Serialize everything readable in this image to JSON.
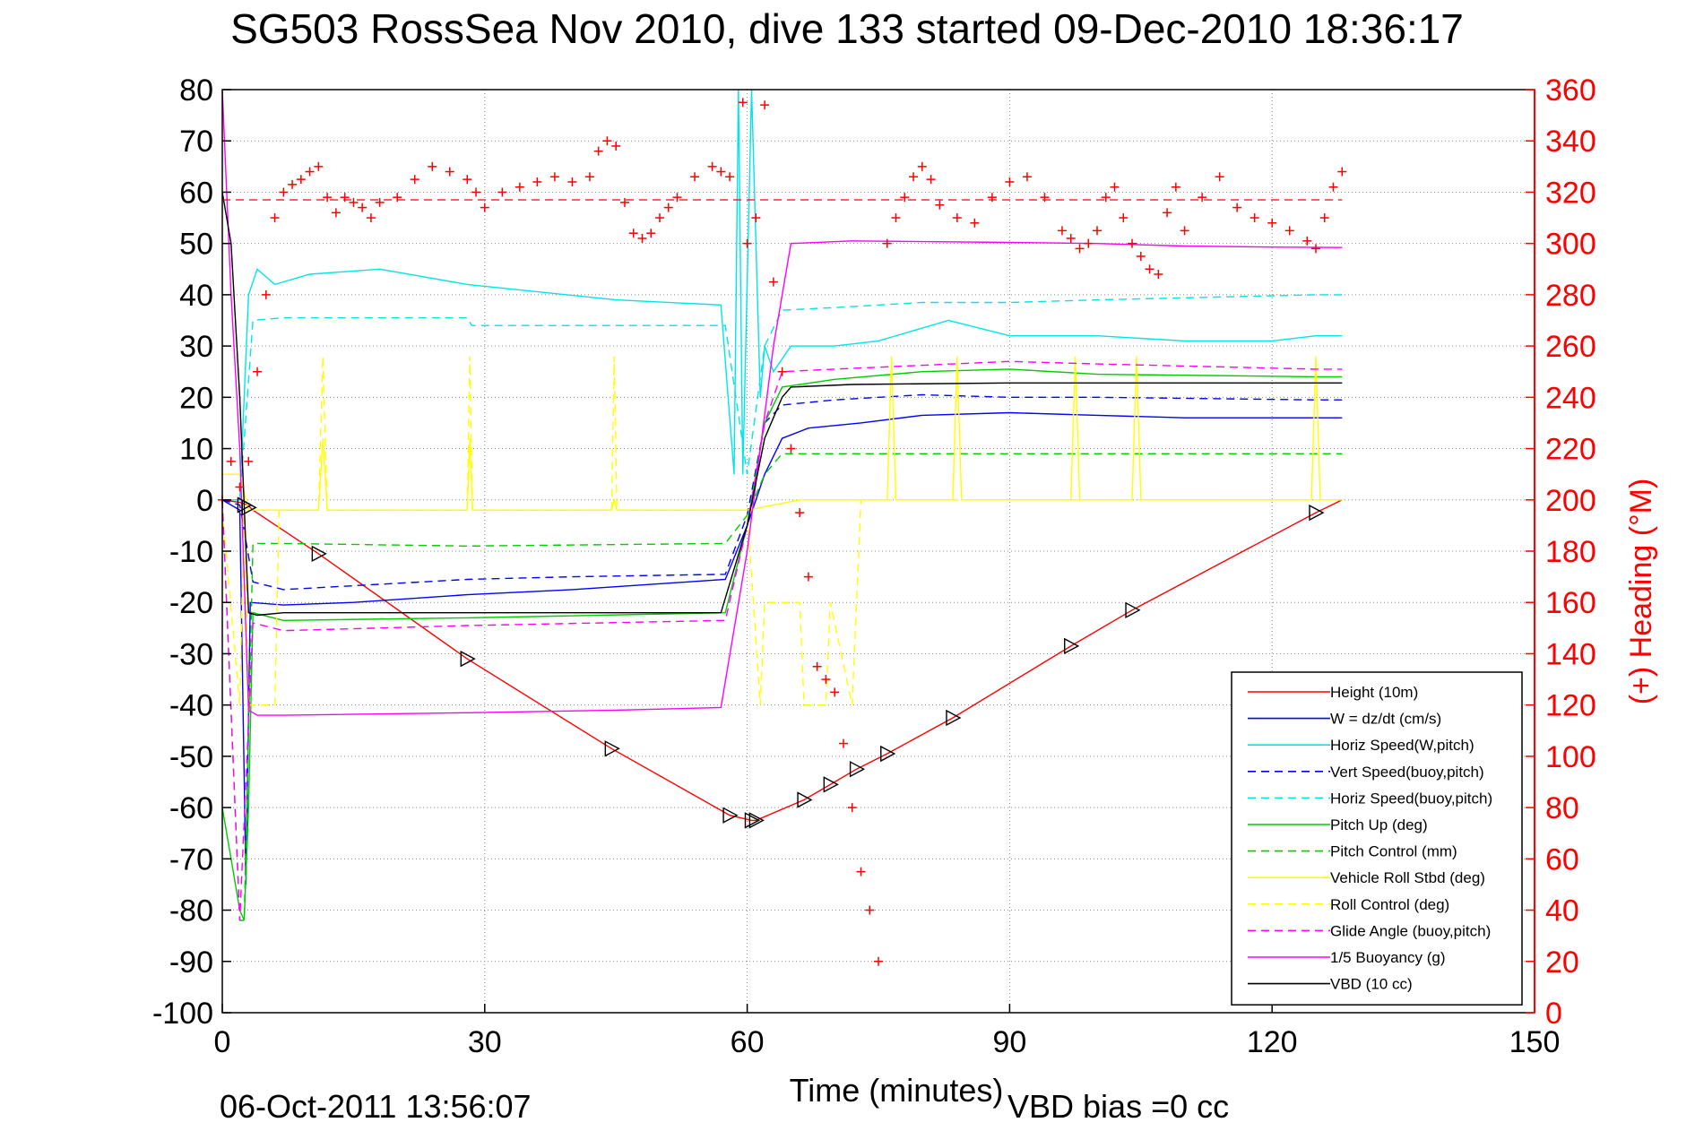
{
  "chart_data": {
    "type": "line",
    "title": "SG503 RossSea Nov 2010, dive 133 started 09-Dec-2010 18:36:17",
    "xlabel": "Time (minutes)",
    "ylabel_right": "(+) Heading (°M)",
    "footer_left": "06-Oct-2011 13:56:07",
    "footer_right": "VBD bias =0 cc",
    "xlim": [
      0,
      150
    ],
    "ylim": [
      -100,
      80
    ],
    "ylim_right": [
      0,
      360
    ],
    "xticks": [
      "0",
      "30",
      "60",
      "90",
      "120",
      "150"
    ],
    "yticks": [
      "80",
      "70",
      "60",
      "50",
      "40",
      "30",
      "20",
      "10",
      "0",
      "-10",
      "-20",
      "-30",
      "-40",
      "-50",
      "-60",
      "-70",
      "-80",
      "-90",
      "-100"
    ],
    "yticks_right": [
      "360",
      "340",
      "320",
      "300",
      "280",
      "260",
      "240",
      "220",
      "200",
      "180",
      "160",
      "140",
      "120",
      "100",
      "80",
      "60",
      "40",
      "20",
      "0"
    ],
    "grid": true,
    "legend_position": "bottom-right",
    "series": [
      {
        "name": "Height (10m)",
        "color": "#ff0000",
        "dash": "solid",
        "x": [
          0,
          2,
          2.9,
          3.5,
          11,
          28,
          44.5,
          58,
          60.5,
          61,
          66.5,
          69.5,
          72.5,
          76,
          83.5,
          97,
          104,
          125,
          128
        ],
        "y": [
          0,
          -0.5,
          -1,
          -2,
          -10.5,
          -31,
          -48.5,
          -61.5,
          -62.5,
          -62.5,
          -58.5,
          -55.5,
          -52.5,
          -49.5,
          -42.5,
          -28.5,
          -21.5,
          -2.5,
          0
        ]
      },
      {
        "name": "W = dz/dt (cm/s)",
        "color": "#0000ff",
        "dash": "solid",
        "x": [
          0,
          2,
          2.7,
          3.2,
          7,
          15,
          28,
          40,
          57.5,
          60,
          62,
          64,
          67,
          73,
          80,
          90,
          100,
          110,
          125,
          128
        ],
        "y": [
          0,
          -2,
          -75,
          -20,
          -20.5,
          -20,
          -18.5,
          -17.5,
          -15.5,
          -5,
          5,
          12,
          14,
          15,
          16.5,
          17,
          16.5,
          16,
          16,
          16
        ]
      },
      {
        "name": "Horiz Speed(W,pitch)",
        "color": "#00e5e5",
        "dash": "solid",
        "x": [
          0,
          2,
          3,
          4,
          6,
          10,
          18,
          28,
          45,
          57,
          58.5,
          59,
          59.5,
          60.5,
          61.5,
          62,
          63,
          65,
          70,
          75,
          83,
          90,
          100,
          110,
          120,
          125,
          128
        ],
        "y": [
          0,
          0,
          40,
          45,
          42,
          44,
          45,
          42,
          39,
          38,
          5,
          80,
          5,
          80,
          20,
          30,
          25,
          30,
          30,
          31,
          35,
          32,
          32,
          31,
          31,
          32,
          32
        ]
      },
      {
        "name": "Vert Speed(buoy,pitch)",
        "color": "#0000ff",
        "dash": "dashed",
        "x": [
          0,
          2,
          3.5,
          7,
          28,
          40,
          57.5,
          60,
          62,
          64,
          70,
          80,
          90,
          100,
          125,
          128
        ],
        "y": [
          0,
          -1,
          -16,
          -17.5,
          -15.5,
          -15,
          -14.5,
          -3,
          15,
          18.5,
          19.5,
          20.5,
          20,
          20,
          19.5,
          19.5
        ]
      },
      {
        "name": "Horiz Speed(buoy,pitch)",
        "color": "#00e5e5",
        "dash": "dashed",
        "x": [
          0,
          2,
          3.5,
          7,
          28,
          28.5,
          57.5,
          60,
          62,
          64,
          70,
          80,
          90,
          100,
          125,
          128
        ],
        "y": [
          0,
          0,
          35,
          35.5,
          35.5,
          34,
          34,
          5,
          30,
          37,
          37.5,
          38.5,
          38.5,
          39,
          40,
          40
        ]
      },
      {
        "name": "Pitch Up (deg)",
        "color": "#00cc00",
        "dash": "solid",
        "x": [
          0,
          1,
          2,
          2.5,
          3,
          3.5,
          7,
          28,
          57.5,
          60,
          62,
          64,
          70,
          80,
          90,
          100,
          125,
          128
        ],
        "y": [
          -60,
          -70,
          -80,
          -82,
          -60,
          -22,
          -23.5,
          -23,
          -22,
          -5,
          15,
          22,
          23.5,
          25,
          25.5,
          24.5,
          24,
          24
        ]
      },
      {
        "name": "Pitch Control (mm)",
        "color": "#00cc00",
        "dash": "dashed",
        "x": [
          0,
          2,
          2.5,
          3.5,
          7,
          28,
          57.5,
          60,
          62,
          64,
          70,
          90,
          125,
          128
        ],
        "y": [
          0,
          -82,
          -82,
          -8.5,
          -8.5,
          -9,
          -8.5,
          -3,
          5,
          9,
          9,
          9,
          9,
          9
        ]
      },
      {
        "name": "Vehicle Roll Stbd (deg)",
        "color": "#ffff00",
        "dash": "solid",
        "x": [
          0,
          2,
          3,
          6,
          11,
          11.5,
          12,
          28,
          28.3,
          28.6,
          44.5,
          44.8,
          45.1,
          58,
          60,
          66,
          66.5,
          69,
          69.5,
          72,
          73,
          76,
          76.5,
          77,
          83.5,
          84,
          84.5,
          97,
          97.5,
          98,
          104,
          104.5,
          105,
          124.5,
          125,
          125.5,
          128
        ],
        "y": [
          5,
          5,
          -2,
          -2,
          -2,
          12,
          -2,
          -2,
          12,
          -2,
          -2,
          0,
          -2,
          -2,
          -2,
          0,
          0,
          0,
          0,
          0,
          0,
          0,
          28,
          0,
          0,
          28,
          0,
          0,
          28,
          0,
          0,
          28,
          0,
          0,
          28,
          0,
          0
        ]
      },
      {
        "name": "Roll Control (deg)",
        "color": "#ffff00",
        "dash": "dashed",
        "x": [
          0,
          2,
          2.5,
          3,
          6,
          6.5,
          11,
          11.5,
          12,
          28,
          28.3,
          28.6,
          44.5,
          44.8,
          45.1,
          58,
          60,
          61.5,
          62,
          66,
          66.5,
          69,
          69.5,
          72,
          72.5,
          73,
          128
        ],
        "y": [
          -2,
          -40,
          0,
          -40,
          -40,
          -2,
          -2,
          28,
          -2,
          -2,
          28,
          -2,
          -2,
          28,
          -2,
          -2,
          -2,
          -40,
          -20,
          -20,
          -40,
          -40,
          -20,
          -40,
          -20,
          0,
          0
        ]
      },
      {
        "name": "Glide Angle (buoy,pitch)",
        "color": "#ff00ff",
        "dash": "dashed",
        "x": [
          0,
          2,
          3.5,
          7,
          28,
          57.5,
          60,
          62,
          64,
          70,
          90,
          100,
          125,
          128
        ],
        "y": [
          0,
          -82,
          -24,
          -25.5,
          -24.5,
          -23.5,
          -5,
          15,
          25,
          25.5,
          27,
          26.5,
          25.5,
          25.5
        ]
      },
      {
        "name": "1/5 Buoyancy (g)",
        "color": "#ff00ff",
        "dash": "solid",
        "x": [
          0,
          1,
          2,
          3,
          4,
          7,
          28,
          45,
          57,
          60,
          63,
          65,
          72,
          90,
          100,
          110,
          120,
          128
        ],
        "y": [
          80,
          40,
          10,
          -41,
          -42,
          -42,
          -41.5,
          -41,
          -40.5,
          -10,
          30,
          50,
          50.5,
          50.2,
          50,
          49.5,
          49.3,
          49.2
        ]
      },
      {
        "name": "VBD (10 cc)",
        "color": "#000000",
        "dash": "solid",
        "x": [
          0,
          1,
          2,
          3,
          4,
          7,
          28,
          45,
          57,
          60,
          62,
          64,
          65,
          72,
          90,
          100,
          110,
          125,
          128
        ],
        "y": [
          60,
          50,
          20,
          -22,
          -22.5,
          -22,
          -22,
          -22,
          -22,
          -5,
          12,
          20,
          22,
          22.5,
          22.8,
          22.8,
          22.8,
          22.8,
          22.8
        ]
      }
    ],
    "heading": {
      "name": "(+) Heading (°M)",
      "color": "#ff0000",
      "mean_line": 317,
      "x": [
        0,
        1,
        2,
        3,
        4,
        5,
        6,
        7,
        8,
        9,
        10,
        11,
        12,
        13,
        14,
        15,
        16,
        17,
        18,
        20,
        22,
        24,
        26,
        28,
        29,
        30,
        32,
        34,
        36,
        38,
        40,
        42,
        43,
        44,
        45,
        46,
        47,
        48,
        49,
        50,
        51,
        52,
        54,
        56,
        57,
        58,
        59.5,
        60,
        61,
        62,
        63,
        64,
        65,
        66,
        67,
        68,
        69,
        70,
        71,
        72,
        73,
        74,
        75,
        76,
        77,
        78,
        79,
        80,
        81,
        82,
        84,
        86,
        88,
        90,
        92,
        94,
        96,
        97,
        98,
        99,
        100,
        101,
        102,
        103,
        104,
        105,
        106,
        107,
        108,
        109,
        110,
        112,
        114,
        116,
        118,
        120,
        122,
        124,
        125,
        126,
        127,
        128
      ],
      "y": [
        200,
        215,
        205,
        215,
        250,
        280,
        310,
        320,
        323,
        325,
        328,
        330,
        318,
        312,
        318,
        316,
        314,
        310,
        316,
        318,
        325,
        330,
        328,
        325,
        320,
        314,
        320,
        322,
        324,
        326,
        324,
        326,
        336,
        340,
        338,
        316,
        304,
        302,
        304,
        310,
        314,
        318,
        326,
        330,
        328,
        326,
        355,
        300,
        310,
        354,
        285,
        250,
        220,
        195,
        170,
        135,
        130,
        125,
        105,
        80,
        55,
        40,
        20,
        300,
        310,
        318,
        326,
        330,
        325,
        315,
        310,
        308,
        318,
        324,
        326,
        318,
        305,
        302,
        298,
        300,
        305,
        318,
        322,
        310,
        300,
        295,
        290,
        288,
        312,
        322,
        305,
        318,
        326,
        314,
        310,
        308,
        305,
        301,
        298,
        310,
        322,
        328
      ]
    },
    "vbd_markers": {
      "x": [
        2.5,
        3,
        11,
        28,
        44.5,
        58,
        60.5,
        61,
        66.5,
        69.5,
        72.5,
        76,
        83.5,
        97,
        104,
        125
      ],
      "y": [
        -1,
        -1.5,
        -10.5,
        -31,
        -48.5,
        -61.5,
        -62.5,
        -62.5,
        -58.5,
        -55.5,
        -52.5,
        -49.5,
        -42.5,
        -28.5,
        -21.5,
        -2.5
      ]
    }
  }
}
